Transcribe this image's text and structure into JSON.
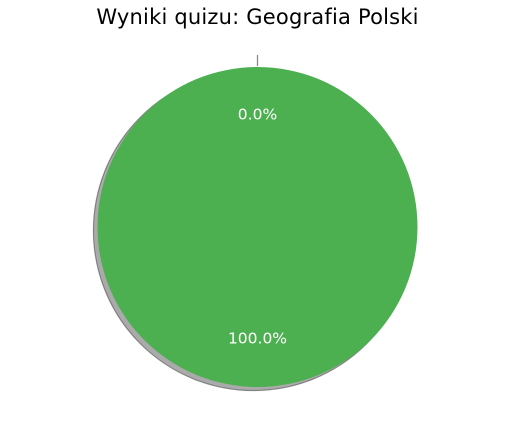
{
  "chart_data": {
    "type": "pie",
    "title": "Wyniki quizu: Geografia Polski",
    "slices": [
      {
        "label": "",
        "value": 0.0,
        "pct_label": "0.0%",
        "color": "#cccccc"
      },
      {
        "label": "",
        "value": 100.0,
        "pct_label": "100.0%",
        "color": "#4caf50"
      }
    ],
    "shadow": true,
    "start_angle_deg": 90
  }
}
